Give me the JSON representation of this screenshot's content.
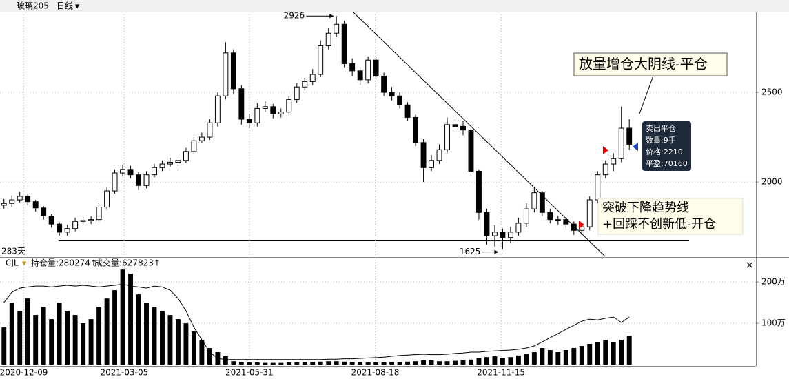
{
  "toolbar": {
    "symbol": "玻璃205",
    "period": "日线"
  },
  "chart_data": [
    {
      "type": "candlestick",
      "open": [
        1870,
        1880,
        1900,
        1920,
        1890,
        1855,
        1810,
        1765,
        1720,
        1740,
        1780,
        1785,
        1790,
        1860,
        1950,
        2050,
        2070,
        2040,
        1980,
        2040,
        2080,
        2100,
        2110,
        2120,
        2170,
        2230,
        2250,
        2330,
        2480,
        2720,
        2520,
        2350,
        2330,
        2410,
        2420,
        2380,
        2390,
        2460,
        2530,
        2560,
        2600,
        2760,
        2830,
        2880,
        2660,
        2620,
        2570,
        2680,
        2590,
        2500,
        2480,
        2430,
        2360,
        2220,
        2080,
        2120,
        2180,
        2320,
        2310,
        2290,
        2060,
        1830,
        1700,
        1720,
        1690,
        1720,
        1770,
        1850,
        1940,
        1830,
        1790,
        1790,
        1765,
        1730,
        1750,
        1900,
        2040,
        2100,
        2130,
        2300
      ],
      "high": [
        1905,
        1925,
        1945,
        1935,
        1900,
        1865,
        1820,
        1775,
        1760,
        1800,
        1805,
        1810,
        1880,
        1970,
        2070,
        2095,
        2090,
        2055,
        2060,
        2100,
        2120,
        2135,
        2140,
        2190,
        2250,
        2275,
        2350,
        2500,
        2780,
        2740,
        2540,
        2380,
        2440,
        2450,
        2435,
        2410,
        2480,
        2550,
        2580,
        2630,
        2790,
        2860,
        2926,
        2900,
        2690,
        2640,
        2700,
        2700,
        2610,
        2530,
        2500,
        2445,
        2375,
        2240,
        2150,
        2210,
        2360,
        2350,
        2340,
        2300,
        2070,
        1850,
        1760,
        1740,
        1750,
        1800,
        1880,
        1970,
        1950,
        1850,
        1810,
        1800,
        1780,
        1770,
        1920,
        2060,
        2120,
        2160,
        2420,
        2350
      ],
      "low": [
        1850,
        1860,
        1885,
        1870,
        1835,
        1790,
        1745,
        1700,
        1700,
        1725,
        1760,
        1765,
        1775,
        1845,
        1935,
        2030,
        2020,
        1955,
        1965,
        2025,
        2060,
        2085,
        2090,
        2105,
        2155,
        2215,
        2235,
        2310,
        2460,
        2490,
        2320,
        2300,
        2310,
        2390,
        2355,
        2360,
        2375,
        2440,
        2510,
        2540,
        2585,
        2740,
        2810,
        2640,
        2590,
        2540,
        2550,
        2570,
        2480,
        2455,
        2410,
        2340,
        2200,
        2000,
        2060,
        2100,
        2160,
        2280,
        2260,
        2040,
        1790,
        1650,
        1640,
        1625,
        1660,
        1700,
        1750,
        1830,
        1810,
        1770,
        1760,
        1745,
        1705,
        1700,
        1730,
        1880,
        2020,
        2060,
        2110,
        2180
      ],
      "close": [
        1880,
        1900,
        1920,
        1890,
        1855,
        1810,
        1765,
        1720,
        1740,
        1780,
        1785,
        1790,
        1860,
        1950,
        2050,
        2070,
        2040,
        1980,
        2040,
        2080,
        2100,
        2110,
        2120,
        2170,
        2230,
        2250,
        2330,
        2480,
        2720,
        2520,
        2350,
        2330,
        2410,
        2420,
        2380,
        2390,
        2460,
        2530,
        2560,
        2600,
        2760,
        2830,
        2880,
        2660,
        2620,
        2570,
        2680,
        2590,
        2500,
        2480,
        2430,
        2360,
        2220,
        2080,
        2120,
        2180,
        2320,
        2310,
        2290,
        2060,
        1830,
        1700,
        1720,
        1690,
        1720,
        1770,
        1850,
        1940,
        1830,
        1790,
        1790,
        1765,
        1730,
        1750,
        1900,
        2040,
        2100,
        2130,
        2300,
        2210
      ],
      "xlim": [
        -0.5,
        95
      ],
      "ylim": [
        1585,
        2950
      ],
      "yticks": [
        2000,
        2500
      ],
      "grid": true,
      "xticks": [
        {
          "value": 2.5,
          "label": "2020-12-09"
        },
        {
          "value": 15.2,
          "label": "2021-03-05"
        },
        {
          "value": 31,
          "label": "2021-05-31"
        },
        {
          "value": 46.9,
          "label": "2021-08-18"
        },
        {
          "value": 62.8,
          "label": "2021-11-15"
        }
      ],
      "days_label": "283天",
      "note_close": "放量增仓大阴线-平仓",
      "note_open": [
        "突破下降趋势线",
        "+回踩不创新低-开仓"
      ],
      "trade": [
        "卖出平仓",
        "数量:9手",
        "价格:2210",
        "平盈:70160"
      ]
    },
    {
      "type": "bar",
      "indicator": "CJL",
      "series": [
        {
          "name": "持仓量:280274↑",
          "kind": "line",
          "color": "#000000",
          "values": [
            150,
            175,
            185,
            188,
            190,
            190,
            188,
            190,
            192,
            190,
            192,
            190,
            188,
            190,
            192,
            195,
            190,
            188,
            185,
            190,
            188,
            180,
            160,
            130,
            90,
            60,
            30,
            15,
            12,
            12,
            12,
            12,
            12,
            12,
            12,
            12,
            12,
            12,
            12,
            12,
            12,
            13,
            13,
            14,
            14,
            15,
            16,
            17,
            18,
            20,
            22,
            23,
            24,
            25,
            24,
            24,
            25,
            27,
            28,
            30,
            30,
            32,
            33,
            34,
            35,
            37,
            40,
            45,
            55,
            65,
            75,
            85,
            95,
            105,
            110,
            108,
            112,
            115,
            102,
            115
          ]
        },
        {
          "name": "成交量:627823↑",
          "kind": "bar",
          "color": "#000000",
          "values": [
            90,
            150,
            130,
            160,
            120,
            140,
            110,
            150,
            130,
            120,
            100,
            110,
            140,
            160,
            180,
            230,
            220,
            170,
            150,
            140,
            130,
            120,
            110,
            100,
            80,
            60,
            40,
            30,
            20,
            8,
            6,
            5,
            5,
            4,
            4,
            4,
            5,
            5,
            6,
            6,
            7,
            8,
            8,
            7,
            6,
            6,
            5,
            5,
            5,
            6,
            6,
            7,
            8,
            10,
            10,
            8,
            8,
            9,
            10,
            12,
            15,
            18,
            20,
            15,
            18,
            22,
            25,
            30,
            40,
            35,
            30,
            35,
            40,
            45,
            50,
            55,
            60,
            55,
            60,
            70
          ]
        }
      ],
      "xlim": [
        -0.5,
        95
      ],
      "ylim": [
        0,
        257
      ],
      "yticks": [
        {
          "value": 100,
          "label": "100万"
        },
        {
          "value": 200,
          "label": "200万"
        }
      ]
    }
  ]
}
